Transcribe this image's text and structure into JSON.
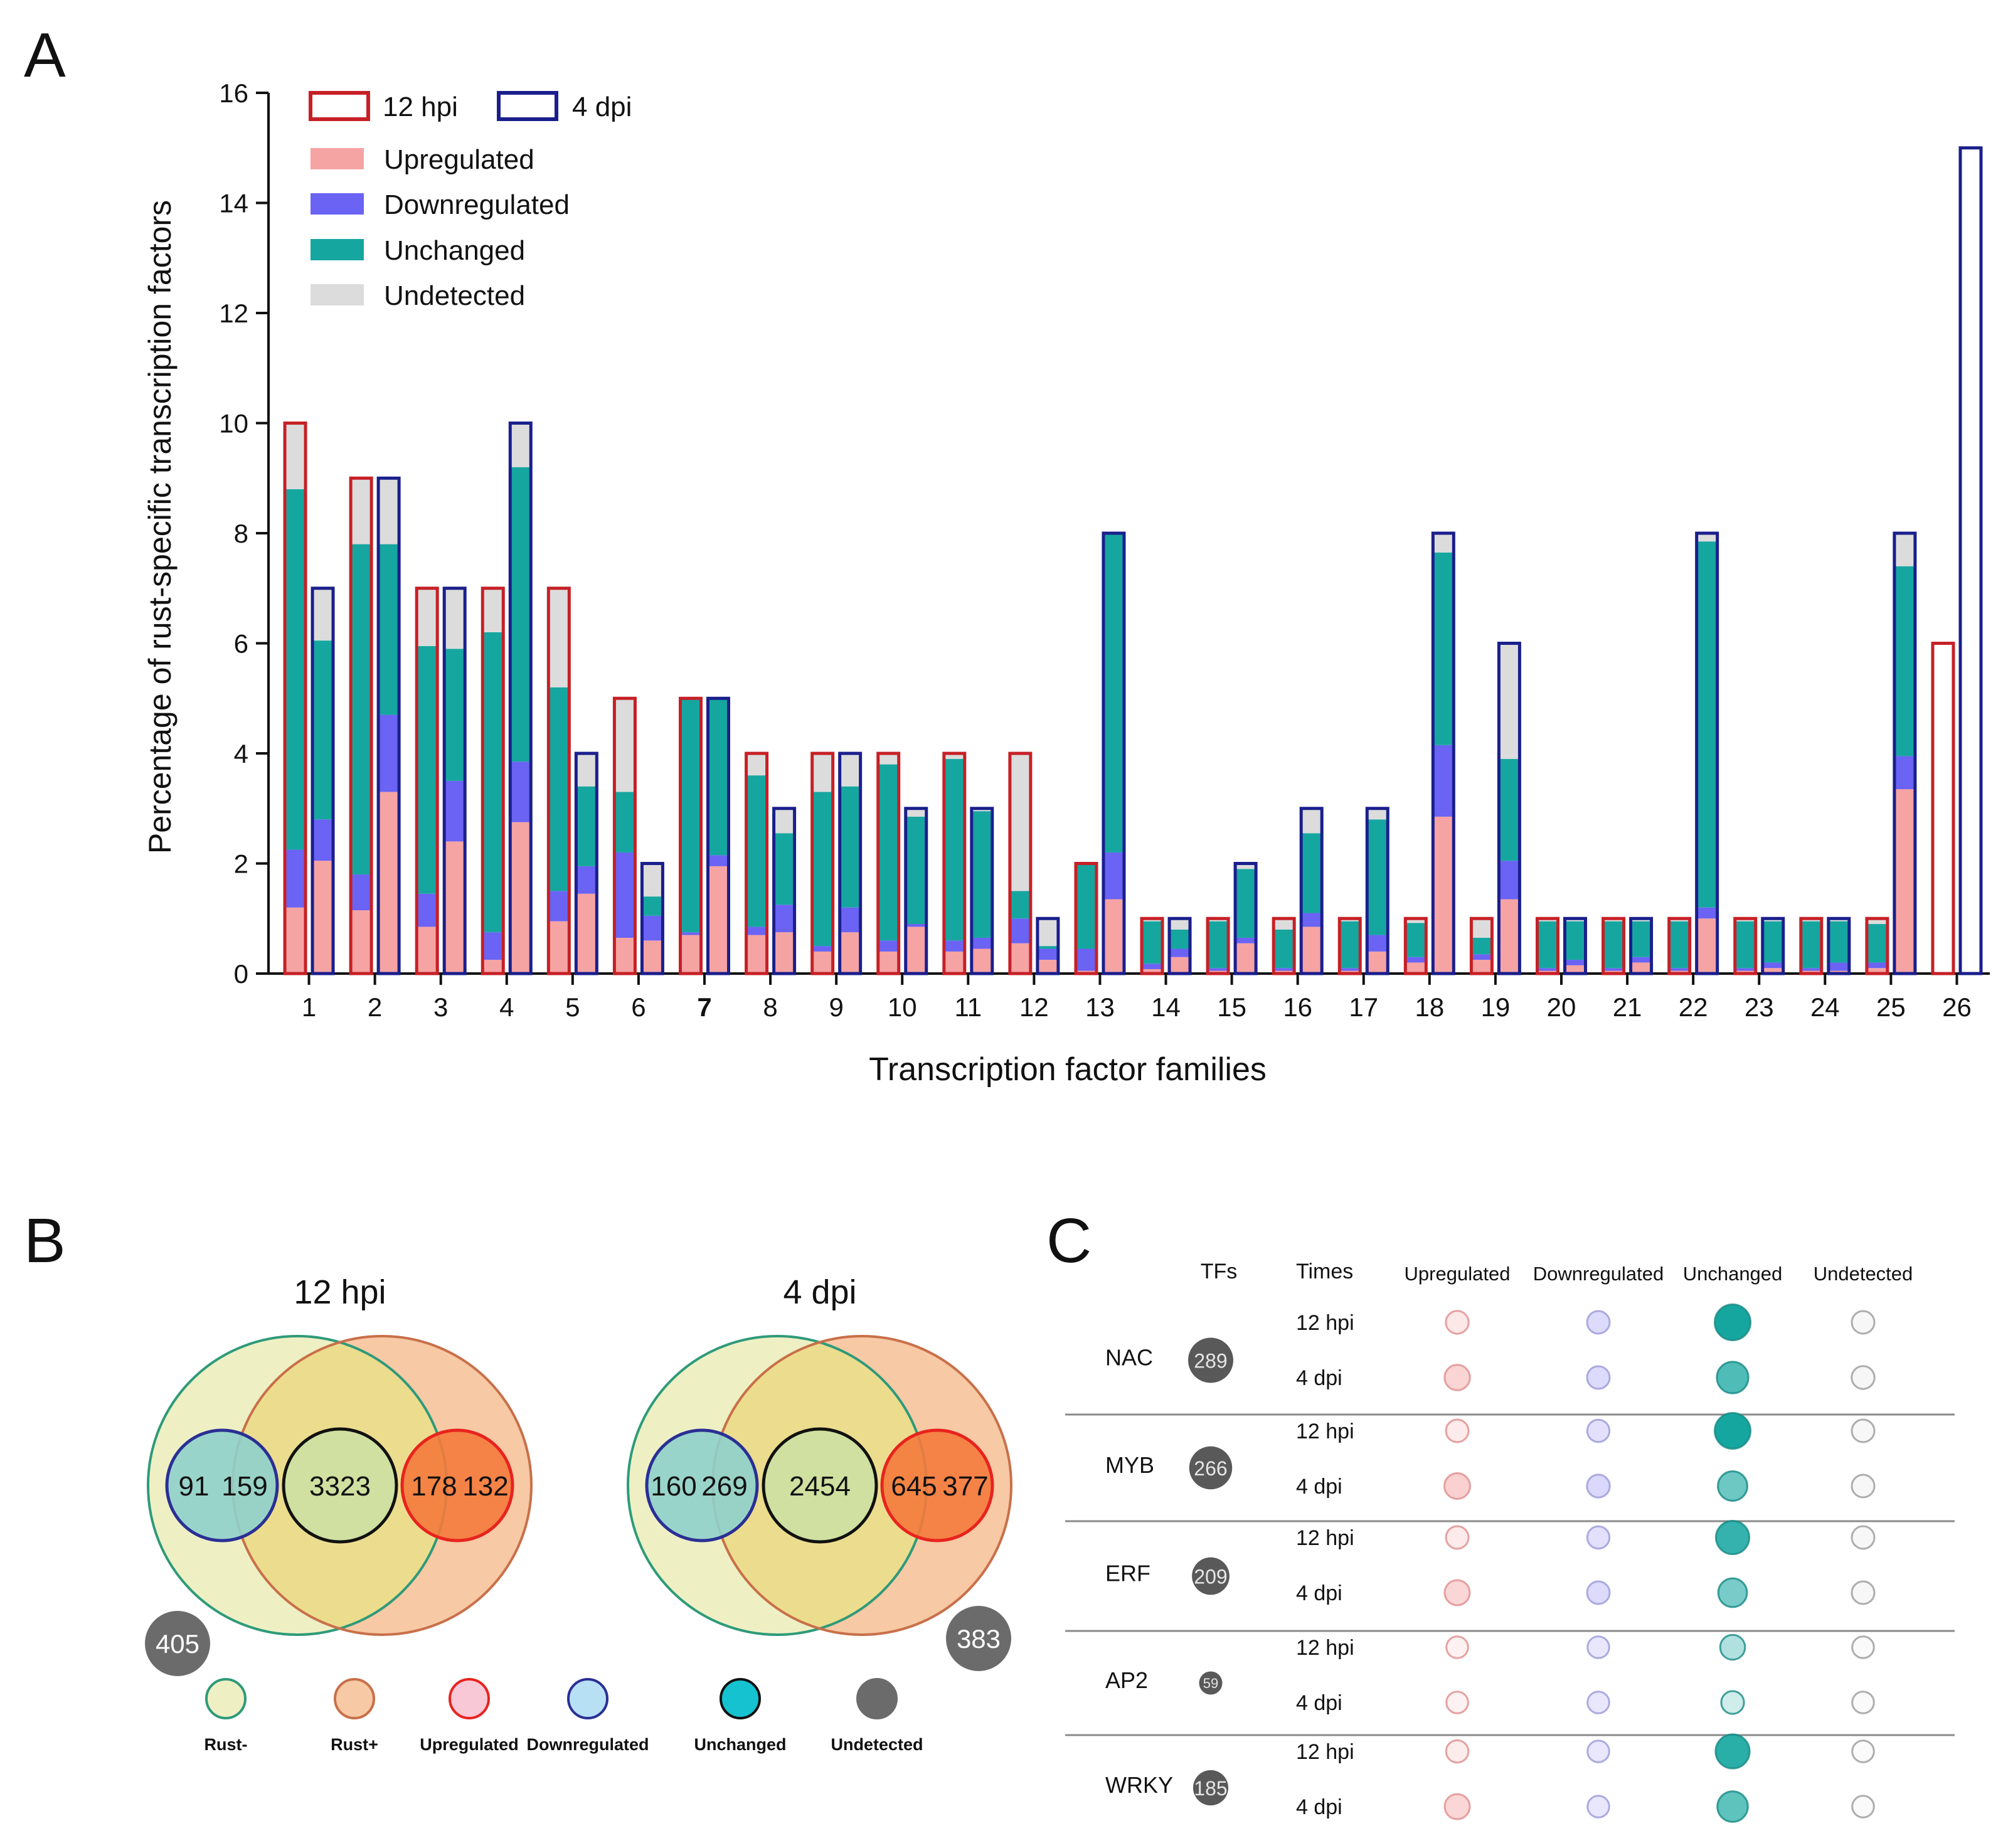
{
  "colors": {
    "upregulated": "#f6a3a3",
    "downregulated": "#6a63f4",
    "unchanged": "#16a6a0",
    "undetected": "#dcdcdc",
    "outline_12hpi": "#c62026",
    "outline_4dpi": "#1a1f8c",
    "rust_minus_fill": "#eef0c4",
    "rust_minus_stroke": "#2f9a7a",
    "rust_plus_fill": "#f7c9a4",
    "rust_plus_stroke": "#c8704a",
    "overlap_fill": "#ecdd8e",
    "venn_down_fill": "#8fd0cc",
    "venn_down_stroke": "#2a2f95",
    "venn_unchanged_fill": "#cfe0a0",
    "venn_up_fill": "#f47a3c",
    "venn_up_stroke": "#e8231e",
    "legend_up_fill": "#f9c8d6",
    "legend_up_stroke": "#e8231e",
    "legend_down_fill": "#b8e0f5",
    "legend_down_stroke": "#2a2f95",
    "legend_unchanged_fill": "#14c2d0",
    "undetected_dark": "#6b6b6b"
  },
  "panel_labels": {
    "a": "A",
    "b": "B",
    "c": "C"
  },
  "chart_data": {
    "type": "bar",
    "stacked": true,
    "title": "",
    "xlabel": "Transcription factor families",
    "ylabel": "Percentage of rust-specific transcription factors",
    "ylim": [
      0,
      16
    ],
    "yticks": [
      0,
      2,
      4,
      6,
      8,
      10,
      12,
      14,
      16
    ],
    "categories": [
      "1",
      "2",
      "3",
      "4",
      "5",
      "6",
      "7",
      "8",
      "9",
      "10",
      "11",
      "12",
      "13",
      "14",
      "15",
      "16",
      "17",
      "18",
      "19",
      "20",
      "21",
      "22",
      "23",
      "24",
      "25",
      "26"
    ],
    "legend": {
      "time_points": [
        "12 hpi",
        "4 dpi"
      ],
      "categories": [
        "Upregulated",
        "Downregulated",
        "Unchanged",
        "Undetected"
      ]
    },
    "series_12hpi": {
      "name": "12 hpi",
      "totals": [
        10,
        9,
        7,
        7,
        7,
        5,
        5,
        4,
        4,
        4,
        4,
        4,
        2,
        1,
        1,
        1,
        1,
        1,
        1,
        1,
        1,
        1,
        1,
        1,
        1,
        6
      ],
      "upregulated": [
        1.2,
        1.15,
        0.85,
        0.25,
        0.95,
        0.65,
        0.7,
        0.7,
        0.4,
        0.4,
        0.4,
        0.55,
        0.05,
        0.08,
        0.05,
        0.05,
        0.05,
        0.2,
        0.25,
        0.05,
        0.05,
        0.05,
        0.05,
        0.05,
        0.1,
        0
      ],
      "downregulated": [
        1.05,
        0.65,
        0.6,
        0.5,
        0.55,
        1.55,
        0.05,
        0.15,
        0.1,
        0.2,
        0.2,
        0.45,
        0.4,
        0.1,
        0.05,
        0.05,
        0.05,
        0.1,
        0.1,
        0.05,
        0.05,
        0.05,
        0.05,
        0.05,
        0.1,
        0
      ],
      "unchanged": [
        6.55,
        6.0,
        4.5,
        5.45,
        3.7,
        1.1,
        4.25,
        2.75,
        2.8,
        3.2,
        3.3,
        0.5,
        1.55,
        0.77,
        0.85,
        0.7,
        0.85,
        0.62,
        0.3,
        0.85,
        0.85,
        0.85,
        0.85,
        0.85,
        0.7,
        0
      ],
      "undetected": [
        1.2,
        1.2,
        1.05,
        0.8,
        1.8,
        1.7,
        0,
        0.4,
        0.7,
        0.2,
        0.1,
        2.5,
        0,
        0.05,
        0.05,
        0.2,
        0.05,
        0.08,
        0.35,
        0.05,
        0.05,
        0.05,
        0.05,
        0.05,
        0.1,
        0
      ]
    },
    "series_4dpi": {
      "name": "4 dpi",
      "totals": [
        7,
        9,
        7,
        10,
        4,
        2,
        5,
        3,
        4,
        3,
        3,
        1,
        8,
        1,
        2,
        3,
        3,
        8,
        6,
        1,
        1,
        8,
        1,
        1,
        8,
        15
      ],
      "upregulated": [
        2.05,
        3.3,
        2.4,
        2.75,
        1.45,
        0.6,
        1.95,
        0.75,
        0.75,
        0.85,
        0.45,
        0.25,
        1.35,
        0.3,
        0.55,
        0.85,
        0.4,
        2.85,
        1.35,
        0.15,
        0.2,
        1.0,
        0.1,
        0.05,
        3.35,
        0
      ],
      "downregulated": [
        0.75,
        1.4,
        1.1,
        1.1,
        0.5,
        0.45,
        0.2,
        0.5,
        0.45,
        0.05,
        0.2,
        0.2,
        0.85,
        0.15,
        0.1,
        0.25,
        0.3,
        1.3,
        0.7,
        0.1,
        0.1,
        0.2,
        0.1,
        0.15,
        0.6,
        0
      ],
      "unchanged": [
        3.25,
        3.1,
        2.4,
        5.35,
        1.45,
        0.35,
        2.85,
        1.3,
        2.2,
        1.95,
        2.3,
        0.05,
        5.8,
        0.35,
        1.25,
        1.45,
        2.1,
        3.5,
        1.85,
        0.7,
        0.65,
        6.65,
        0.75,
        0.75,
        3.45,
        0
      ],
      "undetected": [
        0.95,
        1.2,
        1.1,
        0.8,
        0.6,
        0.6,
        0,
        0.45,
        0.6,
        0.15,
        0.05,
        0.5,
        0,
        0.2,
        0.1,
        0.45,
        0.2,
        0.35,
        2.1,
        0.05,
        0.05,
        0.15,
        0.05,
        0.05,
        0.6,
        0
      ]
    }
  },
  "venn": {
    "diagrams": [
      {
        "title": "12 hpi",
        "down": "91",
        "down_overlap": "159",
        "unchanged": "3323",
        "up_overlap": "178",
        "up": "132",
        "undetected": "405",
        "undetected_side": "left"
      },
      {
        "title": "4 dpi",
        "down": "160",
        "down_overlap": "269",
        "unchanged": "2454",
        "up_overlap": "645",
        "up": "377",
        "undetected": "383",
        "undetected_side": "right"
      }
    ],
    "legend": [
      "Rust-",
      "Rust+",
      "Upregulated",
      "Downregulated",
      "Unchanged",
      "Undetected"
    ]
  },
  "bubble": {
    "headers": {
      "tfs": "TFs",
      "times": "Times",
      "categories": [
        "Upregulated",
        "Downregulated",
        "Unchanged",
        "Undetected"
      ]
    },
    "families": [
      {
        "name": "NAC",
        "tfs": "289",
        "tfs_size": 289,
        "rows": [
          {
            "time": "12 hpi",
            "values": [
              0.12,
              0.1,
              0.82,
              0.1
            ]
          },
          {
            "time": "4 dpi",
            "values": [
              0.32,
              0.1,
              0.58,
              0.12
            ]
          }
        ]
      },
      {
        "name": "MYB",
        "tfs": "266",
        "tfs_size": 266,
        "rows": [
          {
            "time": "12 hpi",
            "values": [
              0.1,
              0.07,
              0.82,
              0.1
            ]
          },
          {
            "time": "4 dpi",
            "values": [
              0.35,
              0.12,
              0.46,
              0.1
            ]
          }
        ]
      },
      {
        "name": "ERF",
        "tfs": "209",
        "tfs_size": 209,
        "rows": [
          {
            "time": "12 hpi",
            "values": [
              0.1,
              0.07,
              0.68,
              0.1
            ]
          },
          {
            "time": "4 dpi",
            "values": [
              0.3,
              0.1,
              0.42,
              0.1
            ]
          }
        ]
      },
      {
        "name": "AP2",
        "tfs": "59",
        "tfs_size": 59,
        "rows": [
          {
            "time": "12 hpi",
            "values": [
              0.03,
              0.03,
              0.2,
              0.03
            ]
          },
          {
            "time": "4 dpi",
            "values": [
              0.03,
              0.03,
              0.08,
              0.03
            ]
          }
        ]
      },
      {
        "name": "WRKY",
        "tfs": "185",
        "tfs_size": 185,
        "rows": [
          {
            "time": "12 hpi",
            "values": [
              0.08,
              0.03,
              0.72,
              0.03
            ]
          },
          {
            "time": "4 dpi",
            "values": [
              0.3,
              0.03,
              0.52,
              0.03
            ]
          }
        ]
      }
    ]
  }
}
